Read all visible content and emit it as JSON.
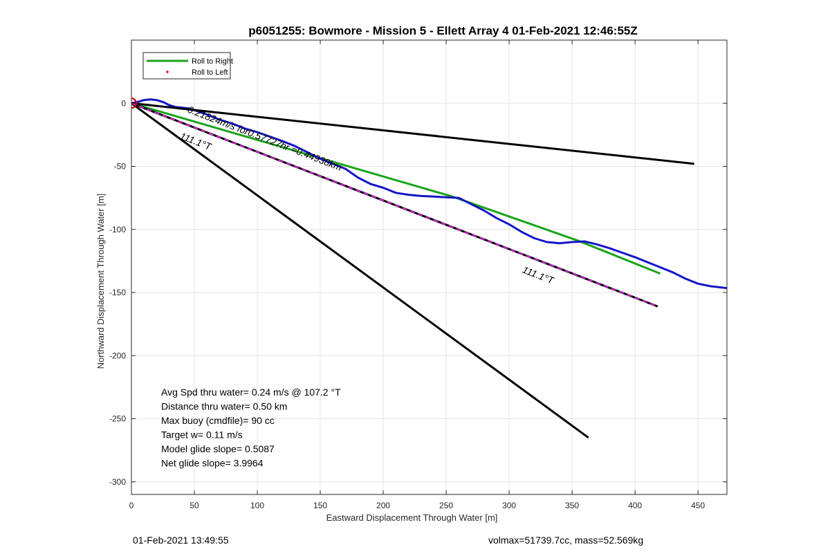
{
  "chart_data": {
    "type": "line",
    "title": "p6051255: Bowmore - Mission 5 - Ellett Array 4 01-Feb-2021 12:46:55Z",
    "xlabel": "Eastward Displacement Through Water [m]",
    "ylabel": "Northward Displacement Through Water [m]",
    "xlim": [
      0,
      473
    ],
    "ylim": [
      -310,
      50
    ],
    "xticks": [
      0,
      50,
      100,
      150,
      200,
      250,
      300,
      350,
      400,
      450
    ],
    "yticks": [
      0,
      -50,
      -100,
      -150,
      -200,
      -250,
      -300
    ],
    "xtick_labels": [
      "0",
      "50",
      "100",
      "150",
      "200",
      "250",
      "300",
      "350",
      "400",
      "450"
    ],
    "ytick_labels": [
      "0",
      "-50",
      "-100",
      "-150",
      "-200",
      "-250",
      "-300"
    ],
    "grid": true,
    "legend_position": "top-left",
    "legend": [
      {
        "label": "Roll to Right",
        "color": "#1aa31a",
        "style": "line"
      },
      {
        "label": "Roll to Left",
        "color": "#ee1111",
        "style": "dot"
      }
    ],
    "series": [
      {
        "name": "Roll to Right",
        "color": "#1aa31a",
        "x": [
          0,
          255,
          355,
          420
        ],
        "y": [
          0,
          -74,
          -109,
          -135
        ]
      },
      {
        "color": "#1414c8",
        "x": [
          0,
          5,
          10,
          15,
          20,
          25,
          30,
          35,
          40,
          45,
          50,
          60,
          70,
          80,
          90,
          100,
          110,
          120,
          130,
          140,
          150,
          160,
          170,
          180,
          190,
          200,
          210,
          220,
          230,
          240,
          250,
          260,
          270,
          280,
          290,
          300,
          310,
          320,
          330,
          340,
          350,
          360,
          370,
          380,
          390,
          400,
          410,
          420,
          430,
          440,
          450,
          460,
          473
        ],
        "y": [
          0,
          1,
          2.5,
          3,
          2.5,
          1,
          -1.5,
          -3,
          -3.5,
          -4,
          -5.5,
          -9,
          -13,
          -16,
          -20,
          -23,
          -26.5,
          -30,
          -34,
          -39,
          -44,
          -48,
          -52,
          -59,
          -64,
          -67,
          -71,
          -72.5,
          -73.5,
          -74,
          -74.5,
          -75,
          -80,
          -85,
          -91,
          -96,
          -102,
          -107,
          -110,
          -111,
          -110,
          -109.5,
          -112,
          -115,
          -118.5,
          -122,
          -126,
          -130,
          -134,
          -139,
          -143,
          -145,
          -146.5
        ]
      },
      {
        "color": "#000000",
        "x": [
          0,
          447
        ],
        "y": [
          0,
          -48
        ]
      },
      {
        "color": "#000000",
        "x": [
          0,
          363
        ],
        "y": [
          0,
          -265
        ]
      },
      {
        "color": "#e020e0",
        "dashed": true,
        "x": [
          0,
          418
        ],
        "y": [
          0,
          -161
        ]
      }
    ],
    "start_marker": {
      "x": 0,
      "y": 0,
      "color": "#dd0000"
    },
    "annotations": [
      {
        "text": "0.21824m/s for0.57727hr =0.44938km",
        "x": 44,
        "y": -7,
        "angle": 21
      },
      {
        "text": "111.1°T",
        "x": 38,
        "y": -28,
        "angle": 21
      },
      {
        "text": "111.1°T",
        "x": 310,
        "y": -134,
        "angle": 21
      }
    ],
    "info_lines": [
      "Avg Spd thru water=  0.24 m/s @ 107.2 °T",
      "Distance thru water=  0.50 km",
      "Max buoy (cmdfile)= 90 cc",
      "Target w= 0.11 m/s",
      "Model glide slope= 0.5087",
      "Net glide slope= 3.9964"
    ]
  },
  "footer": {
    "left": "01-Feb-2021 13:49:55",
    "right": "volmax=51739.7cc, mass=52.569kg"
  }
}
